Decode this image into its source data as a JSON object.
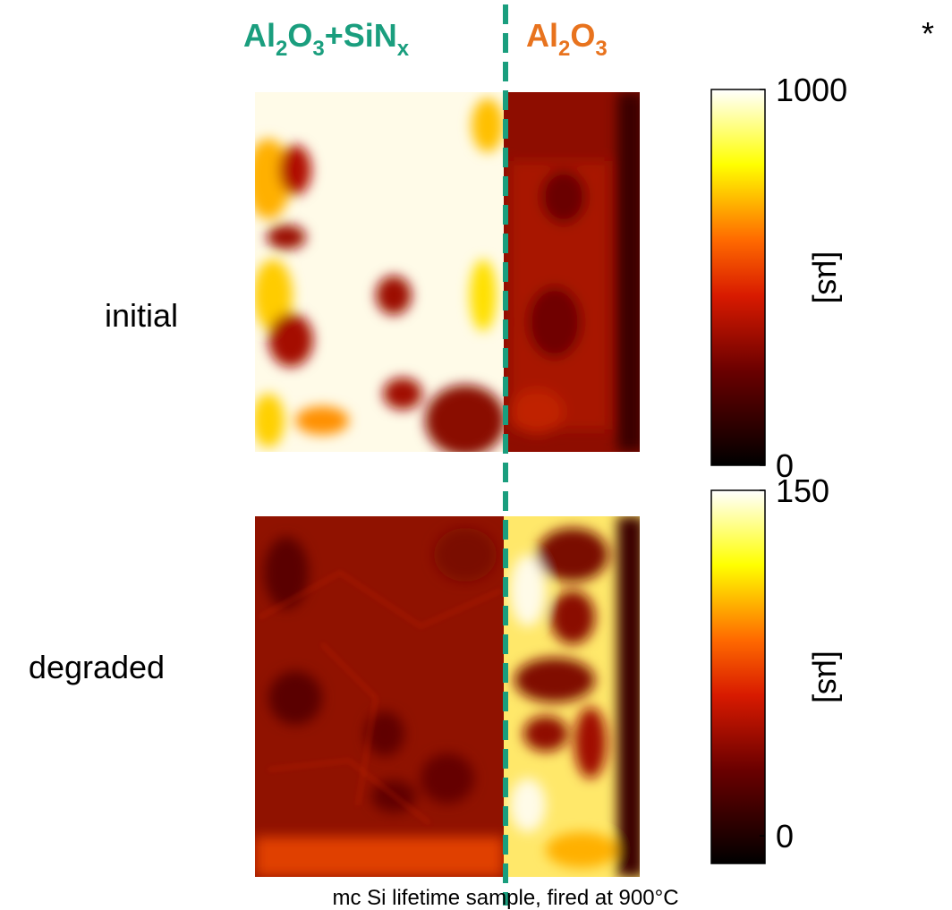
{
  "header": {
    "left_label": [
      "Al",
      "2",
      "O",
      "3",
      "+SiN",
      "x"
    ],
    "right_label": [
      "Al",
      "2",
      "O",
      "3"
    ],
    "note": "*"
  },
  "rows": [
    {
      "label": "initial",
      "colorbar": {
        "label": "[µs]",
        "lim": [
          0,
          1000
        ],
        "ticks": [
          0,
          1000
        ]
      }
    },
    {
      "label": "degraded",
      "colorbar": {
        "label": "[µs]",
        "lim": [
          -12,
          150
        ],
        "ticks": [
          0,
          150
        ]
      }
    }
  ],
  "caption": "mc Si lifetime sample, fired at 900°C"
}
